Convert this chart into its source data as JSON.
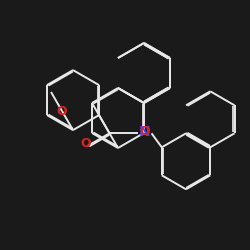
{
  "bg_color": "#1a1a1a",
  "bond_color": "#e8e8e8",
  "N_color": "#4444ff",
  "O_color": "#dd2222",
  "lw": 1.4,
  "dbo": 0.06,
  "fs": 9
}
